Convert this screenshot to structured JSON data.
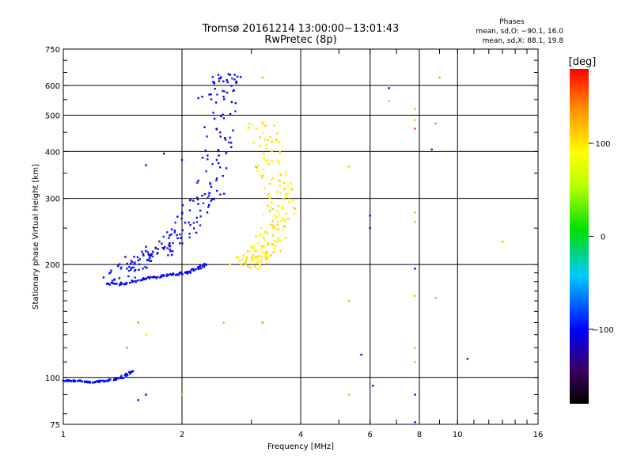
{
  "chart_data": {
    "type": "scatter",
    "title": "Tromsø 20161214 13:00:00−13:01:43",
    "subtitle": "RwPretec (8p)",
    "xlabel": "Frequency [MHz]",
    "ylabel": "Stationary phase Virtual Height [km]",
    "xscale": "log2",
    "yscale": "log",
    "xlim": [
      1,
      16
    ],
    "ylim": [
      75,
      750
    ],
    "x_ticks": [
      1,
      2,
      4,
      6,
      8,
      10,
      16
    ],
    "x_tick_labels": [
      "1",
      "2",
      "4",
      "6",
      "8",
      "10",
      "16"
    ],
    "y_ticks": [
      75,
      100,
      200,
      300,
      400,
      500,
      600,
      750
    ],
    "y_tick_labels": [
      "75",
      "100",
      "200",
      "300",
      "400",
      "500",
      "600",
      "750"
    ],
    "grid": true,
    "phase_stats": {
      "heading": "Phases",
      "line1": "mean, sd,O: −90.1, 16.0",
      "line2": "mean, sd,X: 88.1, 19.8"
    },
    "colorbar": {
      "label": "[deg]",
      "range": [
        -180,
        180
      ],
      "ticks": [
        100,
        0,
        -100
      ],
      "tick_labels": [
        "100",
        "0",
        "−100"
      ],
      "colormap": "rainbow-black-to-red"
    },
    "traces": [
      {
        "name_hint": "E-layer trace",
        "phase_deg": -100,
        "points": [
          [
            1.0,
            98
          ],
          [
            1.03,
            98
          ],
          [
            1.06,
            98
          ],
          [
            1.1,
            98
          ],
          [
            1.15,
            97
          ],
          [
            1.2,
            97
          ],
          [
            1.25,
            98
          ],
          [
            1.3,
            98
          ],
          [
            1.35,
            99
          ],
          [
            1.4,
            100
          ],
          [
            1.45,
            102
          ],
          [
            1.5,
            104
          ]
        ]
      },
      {
        "name_hint": "F-layer O-mode lower edge",
        "phase_deg": -100,
        "points": [
          [
            1.3,
            178
          ],
          [
            1.4,
            177
          ],
          [
            1.5,
            180
          ],
          [
            1.6,
            183
          ],
          [
            1.7,
            185
          ],
          [
            1.8,
            187
          ],
          [
            1.9,
            188
          ],
          [
            2.0,
            189
          ],
          [
            2.1,
            192
          ],
          [
            2.2,
            196
          ],
          [
            2.3,
            200
          ]
        ]
      },
      {
        "name_hint": "F-layer O-mode rising branch",
        "phase_deg": -100,
        "points": [
          [
            1.35,
            182
          ],
          [
            1.45,
            195
          ],
          [
            1.55,
            205
          ],
          [
            1.65,
            212
          ],
          [
            1.8,
            220
          ],
          [
            1.95,
            235
          ],
          [
            2.1,
            255
          ],
          [
            2.2,
            290
          ],
          [
            2.35,
            310
          ],
          [
            2.45,
            380
          ],
          [
            2.5,
            450
          ],
          [
            2.55,
            560
          ],
          [
            2.6,
            620
          ],
          [
            2.65,
            640
          ]
        ]
      },
      {
        "name_hint": "F-layer X-mode",
        "phase_deg": 100,
        "points": [
          [
            2.9,
            200
          ],
          [
            3.0,
            205
          ],
          [
            3.1,
            210
          ],
          [
            3.2,
            215
          ],
          [
            3.3,
            225
          ],
          [
            3.4,
            240
          ],
          [
            3.5,
            260
          ],
          [
            3.6,
            285
          ],
          [
            3.55,
            310
          ],
          [
            3.4,
            340
          ],
          [
            3.3,
            380
          ],
          [
            3.25,
            430
          ],
          [
            3.2,
            480
          ]
        ]
      }
    ],
    "isolated_points": [
      {
        "x": 1.62,
        "y": 368,
        "phase_deg": -100
      },
      {
        "x": 1.8,
        "y": 395,
        "phase_deg": -100
      },
      {
        "x": 2.0,
        "y": 380,
        "phase_deg": -100
      },
      {
        "x": 2.2,
        "y": 555,
        "phase_deg": -100
      },
      {
        "x": 2.25,
        "y": 560,
        "phase_deg": -100
      },
      {
        "x": 1.45,
        "y": 120,
        "phase_deg": 140
      },
      {
        "x": 1.55,
        "y": 140,
        "phase_deg": 140
      },
      {
        "x": 1.62,
        "y": 130,
        "phase_deg": 100
      },
      {
        "x": 1.62,
        "y": 90,
        "phase_deg": -100
      },
      {
        "x": 1.55,
        "y": 87,
        "phase_deg": -110
      },
      {
        "x": 2.0,
        "y": 90,
        "phase_deg": 40
      },
      {
        "x": 2.55,
        "y": 140,
        "phase_deg": 40
      },
      {
        "x": 3.2,
        "y": 140,
        "phase_deg": 140
      },
      {
        "x": 3.2,
        "y": 630,
        "phase_deg": 120
      },
      {
        "x": 5.3,
        "y": 160,
        "phase_deg": 120
      },
      {
        "x": 5.3,
        "y": 90,
        "phase_deg": 40
      },
      {
        "x": 5.3,
        "y": 365,
        "phase_deg": 120
      },
      {
        "x": 5.7,
        "y": 115,
        "phase_deg": -100
      },
      {
        "x": 6.0,
        "y": 270,
        "phase_deg": -100
      },
      {
        "x": 6.0,
        "y": 250,
        "phase_deg": -110
      },
      {
        "x": 6.1,
        "y": 95,
        "phase_deg": -100
      },
      {
        "x": 6.7,
        "y": 590,
        "phase_deg": -100
      },
      {
        "x": 6.7,
        "y": 545,
        "phase_deg": 40
      },
      {
        "x": 7.8,
        "y": 520,
        "phase_deg": 40
      },
      {
        "x": 7.8,
        "y": 485,
        "phase_deg": 40
      },
      {
        "x": 7.8,
        "y": 460,
        "phase_deg": 160
      },
      {
        "x": 7.8,
        "y": 275,
        "phase_deg": 40
      },
      {
        "x": 7.8,
        "y": 260,
        "phase_deg": 40
      },
      {
        "x": 7.8,
        "y": 195,
        "phase_deg": -100
      },
      {
        "x": 7.8,
        "y": 165,
        "phase_deg": 40
      },
      {
        "x": 7.8,
        "y": 120,
        "phase_deg": 120
      },
      {
        "x": 7.8,
        "y": 110,
        "phase_deg": 120
      },
      {
        "x": 7.8,
        "y": 90,
        "phase_deg": -100
      },
      {
        "x": 7.8,
        "y": 76,
        "phase_deg": -100
      },
      {
        "x": 8.6,
        "y": 405,
        "phase_deg": -90
      },
      {
        "x": 8.8,
        "y": 475,
        "phase_deg": 140
      },
      {
        "x": 8.8,
        "y": 163,
        "phase_deg": 130
      },
      {
        "x": 9.0,
        "y": 630,
        "phase_deg": 30
      },
      {
        "x": 10.6,
        "y": 112,
        "phase_deg": -120
      },
      {
        "x": 13.0,
        "y": 230,
        "phase_deg": 120
      }
    ]
  }
}
